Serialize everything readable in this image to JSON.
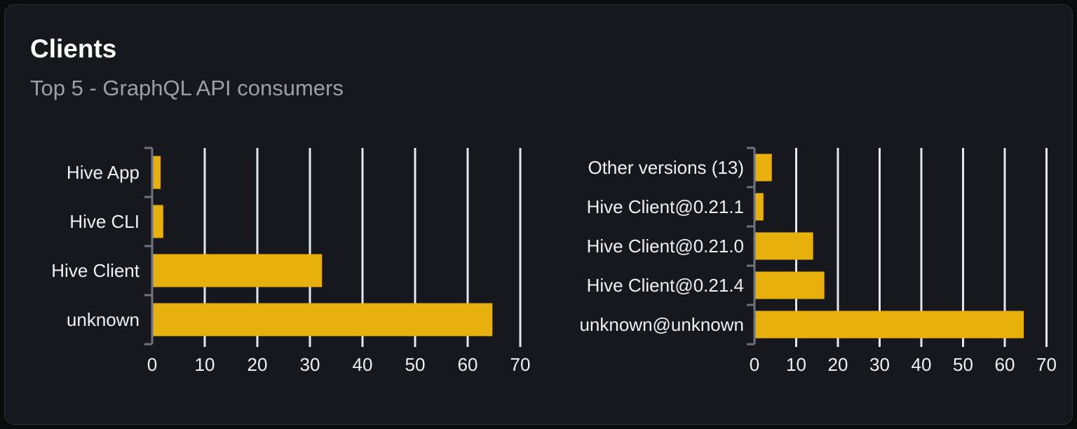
{
  "panel": {
    "title": "Clients",
    "subtitle": "Top 5 - GraphQL API consumers"
  },
  "colors": {
    "outer_background": "#0a0b0d",
    "card_background": "#16181d",
    "card_border": "#2c2f36",
    "bar_fill": "#e8b00c",
    "gridline": "#e3e7ef",
    "axis": "#70737c",
    "title_text": "#ffffff",
    "subtitle_text": "#9aa0a8",
    "label_text": "#eef0f3"
  },
  "chart_data": [
    {
      "type": "bar",
      "orientation": "horizontal",
      "title": "",
      "categories": [
        "Hive App",
        "Hive CLI",
        "Hive Client",
        "unknown"
      ],
      "values": [
        1.4,
        1.9,
        32.1,
        64.5
      ],
      "xlabel": "",
      "ylabel": "",
      "xlim": [
        0,
        70
      ],
      "xticks": [
        0,
        10,
        20,
        30,
        40,
        50,
        60,
        70
      ],
      "grid": true,
      "legend": false
    },
    {
      "type": "bar",
      "orientation": "horizontal",
      "title": "",
      "categories": [
        "Other versions (13)",
        "Hive Client@0.21.1",
        "Hive Client@0.21.0",
        "Hive Client@0.21.4",
        "unknown@unknown"
      ],
      "values": [
        3.9,
        1.9,
        13.8,
        16.5,
        64.3
      ],
      "xlabel": "",
      "ylabel": "",
      "xlim": [
        0,
        70
      ],
      "xticks": [
        0,
        10,
        20,
        30,
        40,
        50,
        60,
        70
      ],
      "grid": true,
      "legend": false
    }
  ]
}
